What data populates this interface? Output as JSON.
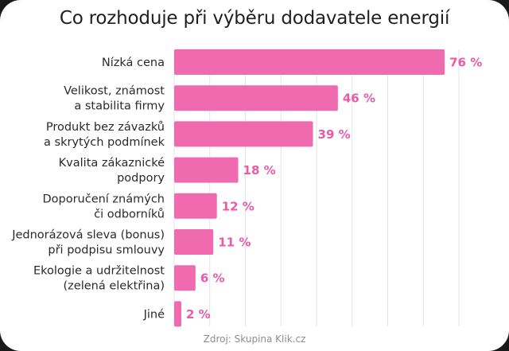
{
  "chart_data": {
    "type": "bar",
    "orientation": "horizontal",
    "title": "Co rozhoduje při výběru dodavatele energií",
    "categories": [
      [
        "Nízká cena"
      ],
      [
        "Velikost, známost",
        "a stabilita firmy"
      ],
      [
        "Produkt bez závazků",
        "a skrytých podmínek"
      ],
      [
        "Kvalita zákaznické",
        "podpory"
      ],
      [
        "Doporučení známých",
        "či odborníků"
      ],
      [
        "Jednorázová sleva (bonus)",
        "při podpisu smlouvy"
      ],
      [
        "Ekologie a udržitelnost",
        "(zelená elektřina)"
      ],
      [
        "Jiné"
      ]
    ],
    "values": [
      76,
      46,
      39,
      18,
      12,
      11,
      6,
      2
    ],
    "value_labels": [
      "76 %",
      "46 %",
      "39 %",
      "18 %",
      "12 %",
      "11 %",
      "6 %",
      "2 %"
    ],
    "unit": "%",
    "xlim": [
      0,
      80
    ],
    "grid": true,
    "colors": {
      "bar": "#f06ab0",
      "value_label": "#ea5aa6",
      "grid": "#e3e3e3"
    }
  },
  "source": "Zdroj: Skupina Klik.cz"
}
